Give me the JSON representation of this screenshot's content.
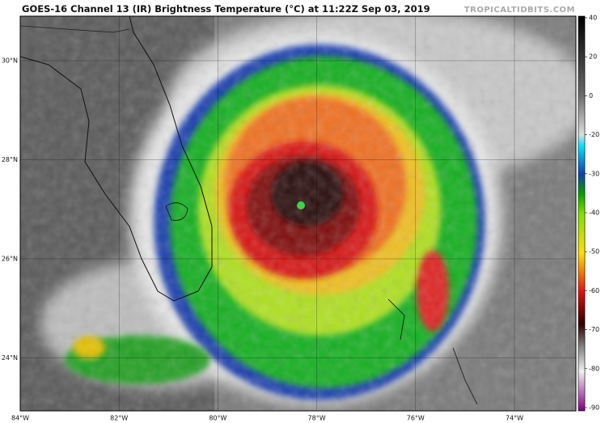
{
  "header": {
    "title": "GOES-16 Channel 13 (IR) Brightness Temperature (°C) at 11:22Z Sep 03, 2019",
    "watermark": "TROPICALTIDBITS.COM"
  },
  "map": {
    "latitude_labels": [
      "30°N",
      "28°N",
      "26°N",
      "24°N"
    ],
    "longitude_labels": [
      "84°W",
      "82°W",
      "80°W",
      "78°W",
      "76°W",
      "74°W"
    ]
  },
  "colorbar": {
    "ticks": [
      40,
      20,
      0,
      -20,
      -30,
      -40,
      -50,
      -60,
      -70,
      -80,
      -90
    ]
  }
}
